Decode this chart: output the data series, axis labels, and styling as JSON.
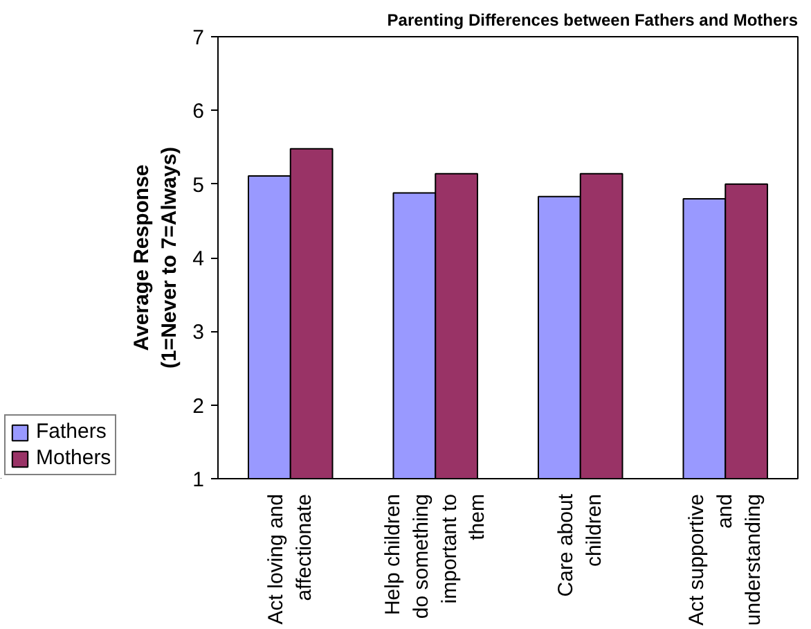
{
  "chart_data": {
    "type": "bar",
    "title": "Parenting Differences between Fathers and Mothers",
    "ylabel": "Average Response\n(1=Never to 7=Always)",
    "categories": [
      "Act loving and affectionate",
      "Help children do something important to them",
      "Care about children",
      "Act supportive and understanding"
    ],
    "series": [
      {
        "name": "Fathers",
        "color": "#9999ff",
        "values": [
          5.11,
          4.88,
          4.83,
          4.8
        ]
      },
      {
        "name": "Mothers",
        "color": "#993366",
        "values": [
          5.48,
          5.14,
          5.14,
          5.0
        ]
      }
    ],
    "ylim": [
      1,
      7
    ],
    "yticks": [
      1,
      2,
      3,
      4,
      5,
      6,
      7
    ],
    "grid": false,
    "legend": "bottom left"
  }
}
